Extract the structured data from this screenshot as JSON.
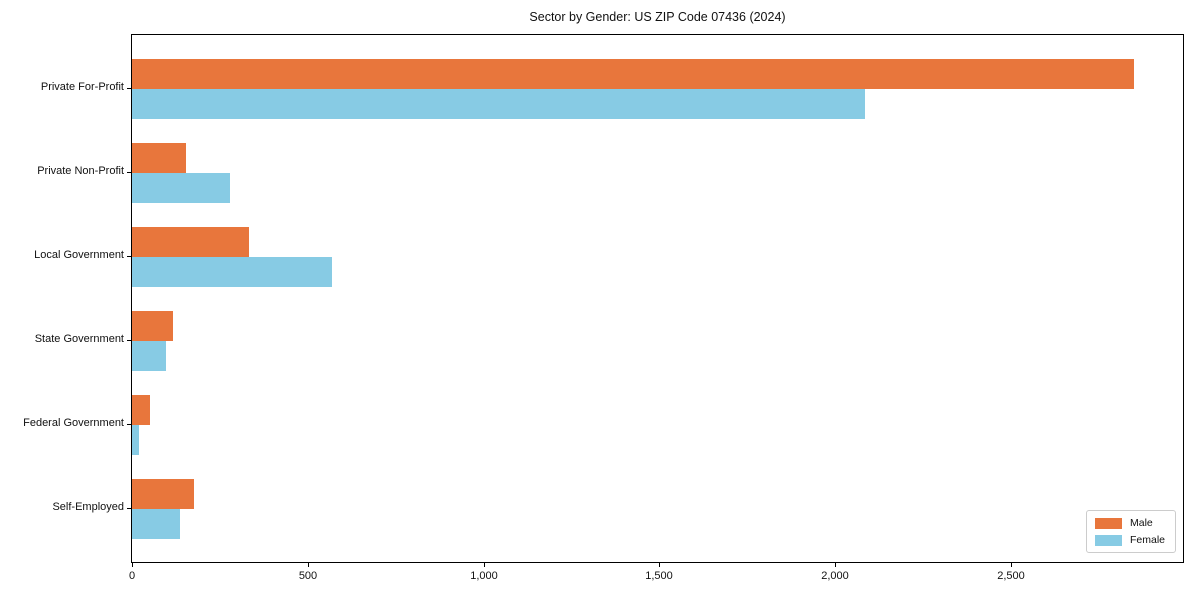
{
  "chart_data": {
    "type": "bar",
    "orientation": "horizontal",
    "title": "Sector by Gender: US ZIP Code 07436 (2024)",
    "categories": [
      "Private For-Profit",
      "Private Non-Profit",
      "Local Government",
      "State Government",
      "Federal Government",
      "Self-Employed"
    ],
    "series": [
      {
        "name": "Male",
        "color": "#E8763C",
        "values": [
          2850,
          155,
          333,
          117,
          52,
          176
        ]
      },
      {
        "name": "Female",
        "color": "#87CBE4",
        "values": [
          2085,
          280,
          570,
          97,
          19,
          136
        ]
      }
    ],
    "xlabel": "",
    "ylabel": "",
    "xlim": [
      0,
      2990
    ],
    "xticks": [
      0,
      500,
      1000,
      1500,
      2000,
      2500
    ],
    "xtick_labels": [
      "0",
      "500",
      "1,000",
      "1,500",
      "2,000",
      "2,500"
    ],
    "legend": {
      "position": "lower right"
    },
    "grid": false,
    "background_color": "#ffffff",
    "frame_color": "#000000"
  }
}
